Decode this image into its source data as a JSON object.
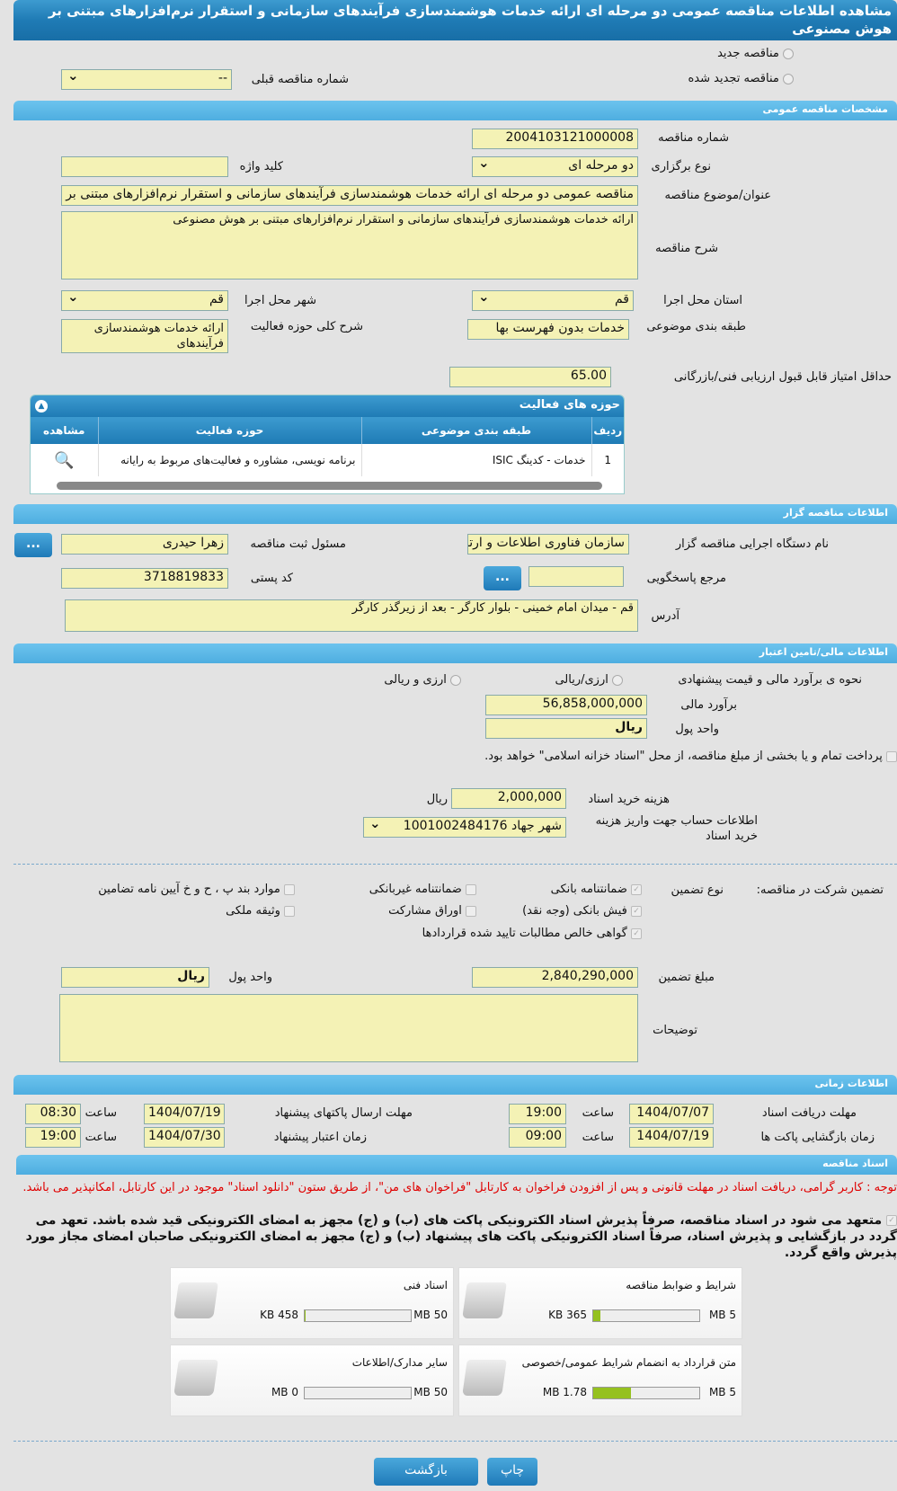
{
  "title": "مشاهده اطلاعات مناقصه عمومی دو مرحله ای ارائه خدمات هوشمندسازی فرآیندهای سازمانی و استقرار نرم‌افزارهای مبتنی بر هوش مصنوعی",
  "tender_type": {
    "new": "مناقصه جدید",
    "renewed": "مناقصه تجدید شده",
    "prev_number_label": "شماره مناقصه قبلی",
    "prev_number_value": "--"
  },
  "general": {
    "section": "مشخصات مناقصه عمومی",
    "number_label": "شماره مناقصه",
    "number": "2004103121000008",
    "holding_type_label": "نوع برگزاری",
    "holding_type": "دو مرحله ای",
    "keyword_label": "کلید واژه",
    "keyword": "",
    "subject_label": "عنوان/موضوع مناقصه",
    "subject": "مناقصه عمومی دو مرحله ای ارائه خدمات هوشمندسازی فرآیندهای سازمانی و استقرار نرم‌افزارهای مبتنی بر هوش مصنوعی",
    "desc_label": "شرح مناقصه",
    "desc": "ارائه خدمات هوشمندسازی فرآیندهای سازمانی و استقرار نرم‌افزارهای مبتنی بر هوش مصنوعی",
    "province_label": "استان محل اجرا",
    "province": "قم",
    "city_label": "شهر محل اجرا",
    "city": "قم",
    "category_label": "طبقه بندی موضوعی",
    "category": "خدمات بدون فهرست بها",
    "activity_desc_label": "شرح کلی حوزه فعالیت",
    "activity_desc": "ارائه خدمات هوشمندسازی فرآیندهای",
    "min_score_label": "حداقل امتیاز قابل قبول ارزیابی فنی/بازرگانی",
    "min_score": "65.00"
  },
  "activities": {
    "title": "حوزه های فعالیت",
    "headers": [
      "ردیف",
      "طبقه بندی موضوعی",
      "حوزه فعالیت",
      "مشاهده"
    ],
    "rows": [
      {
        "index": "1",
        "category": "خدمات - کدینگ ISIC",
        "field": "برنامه نویسی، مشاوره و فعالیت‌های مربوط به رایانه"
      }
    ]
  },
  "organizer": {
    "section": "اطلاعات مناقصه گزار",
    "org_label": "نام دستگاه اجرایی مناقصه گزار",
    "org": "سازمان فناوری اطلاعات و ارتباطات",
    "registrar_label": "مسئول ثبت مناقصه",
    "registrar": "زهرا حیدری",
    "more": "...",
    "ref_label": "مرجع پاسخگویی",
    "ref": "",
    "postal_label": "کد پستی",
    "postal": "3718819833",
    "address_label": "آدرس",
    "address": "قم - میدان امام خمینی - بلوار کارگر - بعد از زیرگذر کارگر"
  },
  "finance": {
    "section": "اطلاعات مالی/تامین اعتبار",
    "method_label": "نحوه ی برآورد مالی و قیمت پیشنهادی",
    "opt1": "ارزی/ریالی",
    "opt2": "ارزی و ریالی",
    "estimate_label": "برآورد مالی",
    "estimate": "56,858,000,000",
    "currency_label": "واحد پول",
    "currency": "ریال",
    "treasury_text": "پرداخت تمام و یا بخشی از مبلغ مناقصه، از محل \"اسناد خزانه اسلامی\" خواهد بود.",
    "doc_fee_label": "هزینه خرید اسناد",
    "doc_fee": "2,000,000",
    "doc_fee_unit": "ریال",
    "account_label": "اطلاعات حساب جهت واریز هزینه خرید اسناد",
    "account": "شهر جهاد 1001002484176"
  },
  "guarantee": {
    "label": "تضمین شرکت در مناقصه:",
    "type_label": "نوع تضمین",
    "options": [
      {
        "label": "ضمانتنامه بانکی",
        "checked": true
      },
      {
        "label": "ضمانتنامه غیربانکی",
        "checked": false
      },
      {
        "label": "موارد بند پ ، ح و خ آیین نامه تضامین",
        "checked": false
      },
      {
        "label": "فیش بانکی (وجه نقد)",
        "checked": true
      },
      {
        "label": "اوراق مشارکت",
        "checked": false
      },
      {
        "label": "وثیقه ملکی",
        "checked": false
      },
      {
        "label": "گواهی خالص مطالبات تایید شده قراردادها",
        "checked": true
      }
    ],
    "amount_label": "مبلغ تضمین",
    "amount": "2,840,290,000",
    "currency_label": "واحد پول",
    "currency": "ریال",
    "notes_label": "توضیحات",
    "notes": ""
  },
  "schedule": {
    "section": "اطلاعات زمانی",
    "time_label": "ساعت",
    "doc_receive_label": "مهلت دریافت اسناد",
    "doc_receive_date": "1404/07/07",
    "doc_receive_time": "19:00",
    "submit_label": "مهلت ارسال پاکتهای پیشنهاد",
    "submit_date": "1404/07/19",
    "submit_time": "08:30",
    "opening_label": "زمان بازگشایی پاکت ها",
    "opening_date": "1404/07/19",
    "opening_time": "09:00",
    "validity_label": "زمان اعتبار پیشنهاد",
    "validity_date": "1404/07/30",
    "validity_time": "19:00"
  },
  "documents": {
    "section": "اسناد مناقصه",
    "notice": "توجه : کاربر گرامی، دریافت اسناد در مهلت قانونی و پس از افزودن فراخوان به کارتابل \"فراخوان های من\"، از طریق ستون \"دانلود اسناد\" موجود در این کارتابل، امکانپذیر می باشد.",
    "commitment": "متعهد می شود در اسناد مناقصه، صرفاً پذیرش اسناد الکترونیکی پاکت های (ب) و (ج) مجهز به امضای الکترونیکی قید شده باشد. تعهد می گردد در بازگشایی و پذیرش اسناد، صرفاً اسناد الکترونیکی پاکت های پیشنهاد (ب) و (ج) مجهز به امضای الکترونیکی صاحبان امضای مجاز مورد پذیرش واقع گردد.",
    "files": [
      {
        "name": "شرایط و ضوابط مناقصه",
        "size": "365 KB",
        "max": "5 MB",
        "percent": 7
      },
      {
        "name": "اسناد فنی",
        "size": "458 KB",
        "max": "50 MB",
        "percent": 1
      },
      {
        "name": "متن قرارداد به انضمام شرایط عمومی/خصوصی",
        "size": "1.78 MB",
        "max": "5 MB",
        "percent": 36
      },
      {
        "name": "سایر مدارک/اطلاعات",
        "size": "0 MB",
        "max": "50 MB",
        "percent": 0
      }
    ]
  },
  "buttons": {
    "back": "بازگشت",
    "print": "چاپ"
  },
  "colors": {
    "header": "#1f7bb5",
    "section": "#5ab6e6",
    "input": "#f4f2b5",
    "progress": "#95c11f",
    "notice": "#e00000"
  }
}
